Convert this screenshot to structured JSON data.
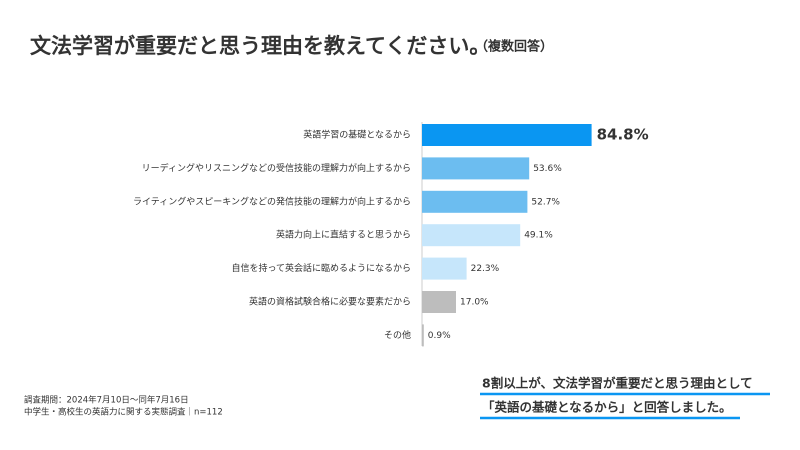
{
  "chart_data": {
    "type": "bar",
    "orientation": "horizontal",
    "title": "文法学習が重要だと思う理由を教えてください。",
    "subtitle": "（複数回答）",
    "categories": [
      "英語学習の基礎となるから",
      "リーディングやリスニングなどの受信技能の理解力が向上するから",
      "ライティングやスピーキングなどの発信技能の理解力が向上するから",
      "英語力向上に直結すると思うから",
      "自信を持って英会話に臨めるようになるから",
      "英語の資格試験合格に必要な要素だから",
      "その他"
    ],
    "values": [
      84.8,
      53.6,
      52.7,
      49.1,
      22.3,
      17.0,
      0.9
    ],
    "value_labels": [
      "84.8%",
      "53.6%",
      "52.7%",
      "49.1%",
      "22.3%",
      "17.0%",
      "0.9%"
    ],
    "colors": [
      "#0a96f2",
      "#6cbdf0",
      "#6cbdf0",
      "#c6e6fb",
      "#c6e6fb",
      "#bdbdbd",
      "#bdbdbd"
    ],
    "notes": [
      "調査期間：2024年7月10日〜同年7月16日",
      "中学生・高校生の英語力に関する実態調査｜n=112"
    ],
    "annotation": [
      "8割以上が、文法学習が重要だと思う理由として",
      "「英語の基礎となるから」と回答しました。"
    ]
  }
}
